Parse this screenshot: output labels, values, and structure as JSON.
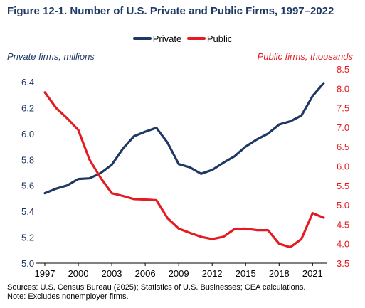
{
  "chart_data": {
    "type": "line",
    "title": "Figure 12-1. Number of U.S. Private and Public Firms, 1997–2022",
    "ylabel_left": "Private firms, millions",
    "ylabel_right": "Public firms, thousands",
    "legend_position": "top-center",
    "grid": false,
    "x": [
      1997,
      1998,
      1999,
      2000,
      2001,
      2002,
      2003,
      2004,
      2005,
      2006,
      2007,
      2008,
      2009,
      2010,
      2011,
      2012,
      2013,
      2014,
      2015,
      2016,
      2017,
      2018,
      2019,
      2020,
      2021,
      2022
    ],
    "x_ticks": [
      "1997",
      "2000",
      "2003",
      "2006",
      "2009",
      "2012",
      "2015",
      "2018",
      "2021"
    ],
    "x_tick_values": [
      1997,
      2000,
      2003,
      2006,
      2009,
      2012,
      2015,
      2018,
      2021
    ],
    "y_left_lim": [
      5.0,
      6.4
    ],
    "y_left_ticks": [
      "5.0",
      "5.2",
      "5.4",
      "5.6",
      "5.8",
      "6.0",
      "6.2",
      "6.4"
    ],
    "y_right_lim": [
      3.5,
      8.5
    ],
    "y_right_ticks": [
      "3.5",
      "4.0",
      "4.5",
      "5.0",
      "5.5",
      "6.0",
      "6.5",
      "7.0",
      "7.5",
      "8.0",
      "8.5"
    ],
    "series": [
      {
        "name": "Private",
        "axis": "left",
        "color": "#1f3864",
        "values": [
          5.54,
          5.575,
          5.6,
          5.65,
          5.655,
          5.695,
          5.76,
          5.885,
          5.98,
          6.015,
          6.045,
          5.93,
          5.765,
          5.74,
          5.69,
          5.72,
          5.775,
          5.825,
          5.9,
          5.955,
          6.0,
          6.07,
          6.095,
          6.14,
          6.29,
          6.39
        ]
      },
      {
        "name": "Public",
        "axis": "right",
        "color": "#e31c23",
        "values": [
          7.9,
          7.5,
          7.23,
          6.93,
          6.17,
          5.7,
          5.3,
          5.23,
          5.15,
          5.14,
          5.12,
          4.66,
          4.39,
          4.28,
          4.18,
          4.12,
          4.18,
          4.38,
          4.39,
          4.35,
          4.35,
          4.0,
          3.91,
          4.12,
          4.79,
          4.67
        ]
      }
    ]
  },
  "notes": {
    "sources": "Sources: U.S. Census Bureau (2025); Statistics of U.S. Businesses; CEA calculations.",
    "note": "Note: Excludes nonemployer firms."
  }
}
